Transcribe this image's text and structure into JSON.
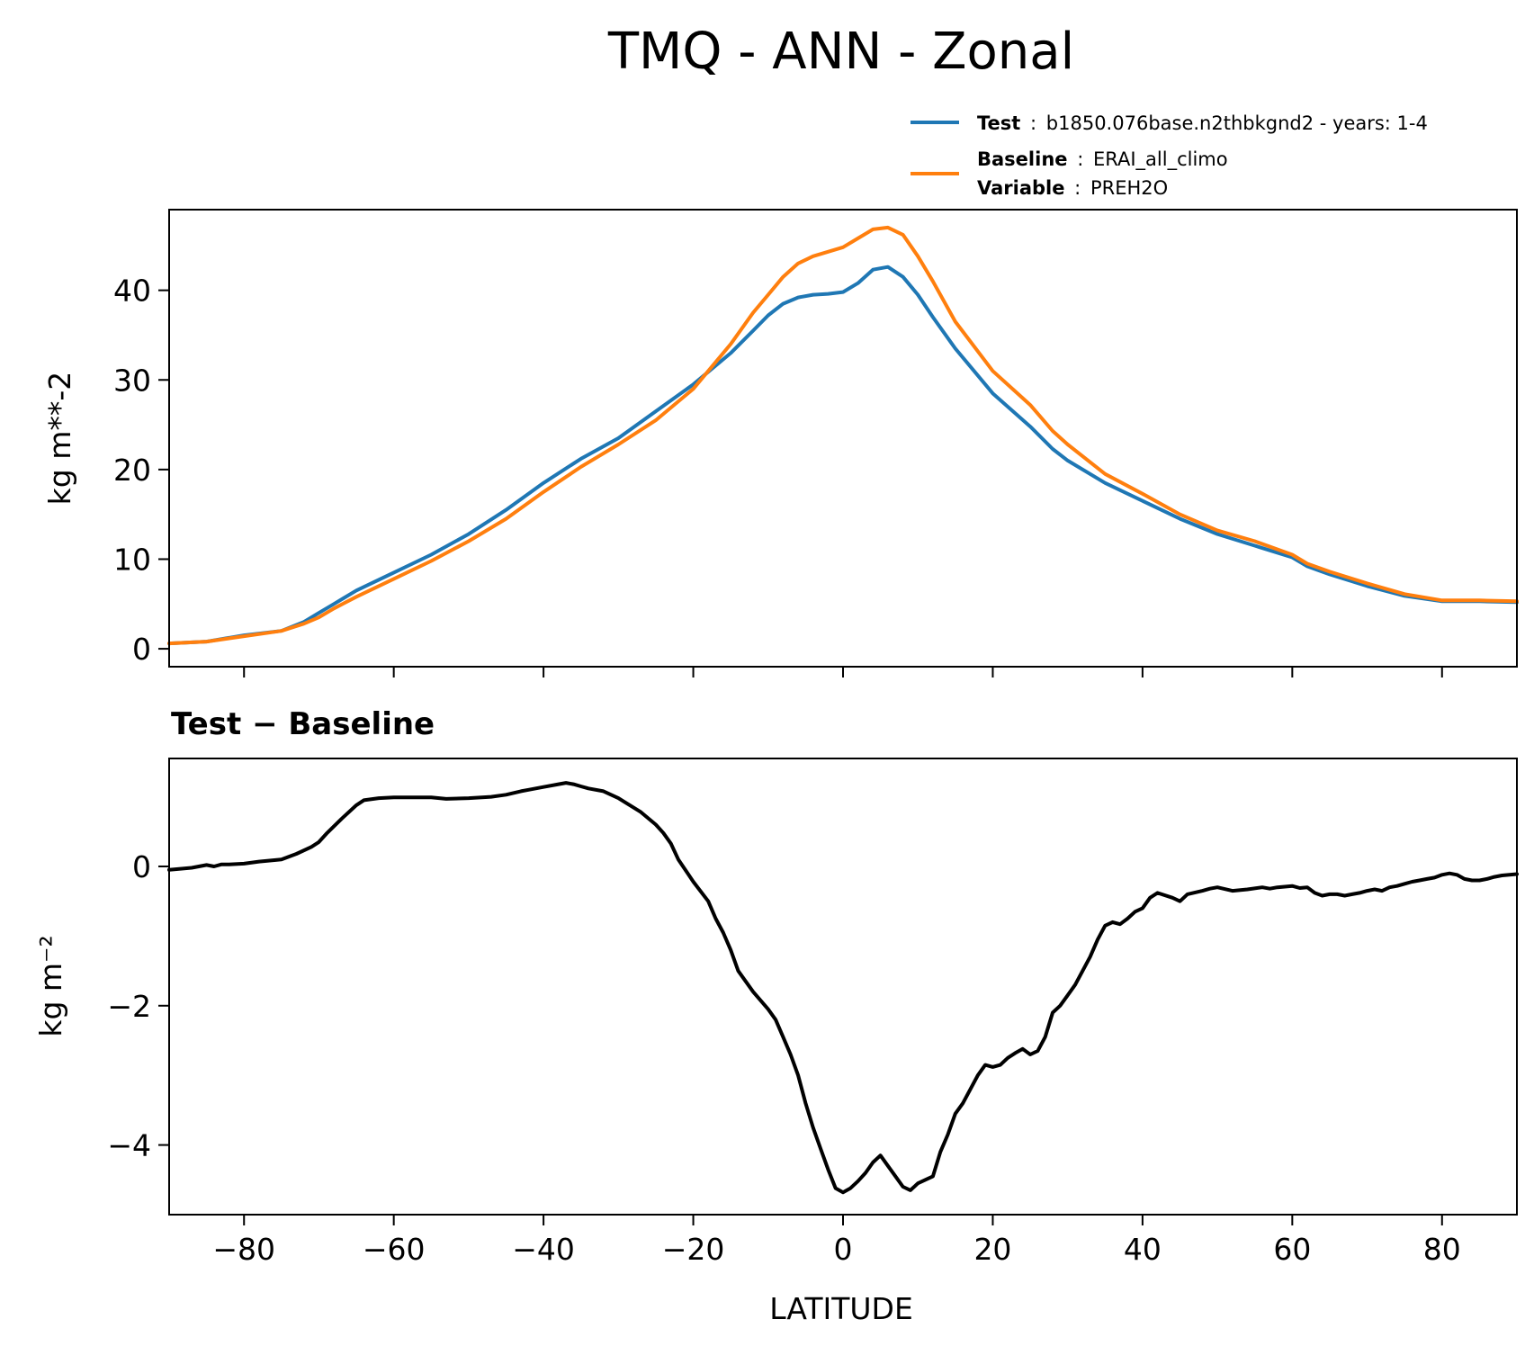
{
  "chart_data": [
    {
      "type": "line",
      "title": "TMQ - ANN - Zonal",
      "xlabel": "",
      "ylabel": "kg m**-2",
      "xlim": [
        -90,
        90
      ],
      "ylim": [
        -2,
        49
      ],
      "x_ticks": [
        -80,
        -60,
        -40,
        -20,
        0,
        20,
        40,
        60,
        80
      ],
      "y_ticks": [
        0,
        10,
        20,
        30,
        40
      ],
      "y_tick_labels": [
        "0",
        "10",
        "20",
        "30",
        "40"
      ],
      "legend": {
        "placement": "above-right",
        "entries": [
          {
            "series": "test",
            "lines": [
              {
                "key": "Test",
                "sep": ":",
                "value": "b1850.076base.n2thbkgnd2 - years: 1-4"
              }
            ]
          },
          {
            "series": "baseline",
            "lines": [
              {
                "key": "Baseline",
                "sep": ":",
                "value": "ERAI_all_climo"
              },
              {
                "key": "Variable",
                "sep": ":",
                "value": "PREH2O"
              }
            ]
          }
        ]
      },
      "series": [
        {
          "id": "test",
          "name": "Test",
          "color": "#1f77b4",
          "x": [
            -90,
            -85,
            -80,
            -75,
            -72,
            -70,
            -68,
            -65,
            -60,
            -55,
            -50,
            -45,
            -40,
            -35,
            -30,
            -25,
            -20,
            -15,
            -12,
            -10,
            -8,
            -6,
            -4,
            -2,
            0,
            2,
            4,
            6,
            8,
            10,
            12,
            15,
            20,
            25,
            28,
            30,
            35,
            40,
            45,
            50,
            55,
            60,
            62,
            65,
            70,
            75,
            80,
            85,
            90
          ],
          "y": [
            0.6,
            0.8,
            1.5,
            2.0,
            3.0,
            4.0,
            5.0,
            6.5,
            8.5,
            10.5,
            12.8,
            15.5,
            18.5,
            21.2,
            23.5,
            26.5,
            29.5,
            33.0,
            35.5,
            37.2,
            38.5,
            39.2,
            39.5,
            39.6,
            39.8,
            40.8,
            42.3,
            42.6,
            41.5,
            39.5,
            37.0,
            33.5,
            28.5,
            24.8,
            22.3,
            21.0,
            18.5,
            16.5,
            14.5,
            12.8,
            11.5,
            10.2,
            9.2,
            8.3,
            7.0,
            5.9,
            5.3,
            5.3,
            5.2
          ]
        },
        {
          "id": "baseline",
          "name": "Baseline",
          "color": "#ff7f0e",
          "x": [
            -90,
            -85,
            -80,
            -75,
            -72,
            -70,
            -68,
            -65,
            -60,
            -55,
            -50,
            -45,
            -40,
            -35,
            -30,
            -25,
            -20,
            -15,
            -12,
            -10,
            -8,
            -6,
            -4,
            -2,
            0,
            2,
            4,
            6,
            8,
            10,
            12,
            15,
            20,
            25,
            28,
            30,
            35,
            40,
            45,
            50,
            55,
            60,
            62,
            65,
            70,
            75,
            80,
            85,
            90
          ],
          "y": [
            0.6,
            0.8,
            1.4,
            2.0,
            2.8,
            3.5,
            4.5,
            5.8,
            7.8,
            9.8,
            12.0,
            14.5,
            17.5,
            20.3,
            22.8,
            25.5,
            29.0,
            34.0,
            37.5,
            39.5,
            41.5,
            43.0,
            43.8,
            44.3,
            44.8,
            45.8,
            46.8,
            47.0,
            46.2,
            43.8,
            41.0,
            36.5,
            31.0,
            27.2,
            24.3,
            22.8,
            19.5,
            17.3,
            15.0,
            13.2,
            12.0,
            10.5,
            9.5,
            8.6,
            7.3,
            6.1,
            5.4,
            5.4,
            5.3
          ]
        }
      ]
    },
    {
      "type": "line",
      "title": "Test − Baseline",
      "xlabel": "LATITUDE",
      "ylabel": "kg m⁻²",
      "xlim": [
        -90,
        90
      ],
      "ylim": [
        -5,
        1.55
      ],
      "x_ticks": [
        -80,
        -60,
        -40,
        -20,
        0,
        20,
        40,
        60,
        80
      ],
      "x_tick_labels": [
        "−80",
        "−60",
        "−40",
        "−20",
        "0",
        "20",
        "40",
        "60",
        "80"
      ],
      "y_ticks": [
        0,
        -2,
        -4
      ],
      "y_tick_labels": [
        "0",
        "−2",
        "−4"
      ],
      "series": [
        {
          "id": "difference",
          "name": "Test − Baseline",
          "color": "#000000",
          "x": [
            -90,
            -87,
            -85,
            -84,
            -83,
            -82,
            -80,
            -78,
            -75,
            -73,
            -71,
            -70,
            -69,
            -67,
            -65,
            -64,
            -62,
            -60,
            -55,
            -53,
            -50,
            -47,
            -45,
            -43,
            -42,
            -40,
            -38,
            -37,
            -36,
            -35,
            -34,
            -32,
            -30,
            -27,
            -25,
            -24,
            -23,
            -22,
            -20,
            -18,
            -17,
            -16,
            -15,
            -14,
            -12,
            -10,
            -9,
            -8,
            -7,
            -6,
            -5,
            -4,
            -3,
            -2,
            -1,
            0,
            1,
            2,
            3,
            4,
            5,
            6,
            7,
            8,
            9,
            10,
            11,
            12,
            13,
            14,
            15,
            16,
            17,
            18,
            19,
            20,
            21,
            22,
            23,
            24,
            25,
            26,
            27,
            28,
            29,
            30,
            31,
            32,
            33,
            34,
            35,
            36,
            37,
            38,
            39,
            40,
            41,
            42,
            44,
            45,
            46,
            48,
            49,
            50,
            52,
            54,
            56,
            57,
            58,
            60,
            61,
            62,
            63,
            64,
            65,
            66,
            67,
            68,
            69,
            70,
            71,
            72,
            73,
            74,
            75,
            76,
            77,
            78,
            79,
            80,
            81,
            82,
            83,
            84,
            85,
            86,
            87,
            88,
            89,
            90
          ],
          "y": [
            -0.05,
            -0.02,
            0.02,
            0.0,
            0.03,
            0.03,
            0.04,
            0.07,
            0.1,
            0.18,
            0.28,
            0.35,
            0.47,
            0.68,
            0.88,
            0.95,
            0.98,
            0.99,
            0.99,
            0.97,
            0.98,
            1.0,
            1.03,
            1.08,
            1.1,
            1.14,
            1.18,
            1.2,
            1.18,
            1.15,
            1.12,
            1.08,
            0.98,
            0.78,
            0.6,
            0.48,
            0.33,
            0.1,
            -0.22,
            -0.5,
            -0.75,
            -0.95,
            -1.2,
            -1.5,
            -1.8,
            -2.05,
            -2.2,
            -2.45,
            -2.7,
            -3.0,
            -3.4,
            -3.75,
            -4.05,
            -4.35,
            -4.62,
            -4.68,
            -4.62,
            -4.52,
            -4.4,
            -4.25,
            -4.15,
            -4.3,
            -4.45,
            -4.6,
            -4.65,
            -4.55,
            -4.5,
            -4.45,
            -4.1,
            -3.85,
            -3.55,
            -3.4,
            -3.2,
            -3.0,
            -2.85,
            -2.88,
            -2.85,
            -2.75,
            -2.68,
            -2.62,
            -2.7,
            -2.65,
            -2.45,
            -2.1,
            -2.0,
            -1.85,
            -1.7,
            -1.5,
            -1.3,
            -1.05,
            -0.85,
            -0.8,
            -0.83,
            -0.75,
            -0.65,
            -0.6,
            -0.45,
            -0.38,
            -0.45,
            -0.5,
            -0.4,
            -0.35,
            -0.32,
            -0.3,
            -0.35,
            -0.33,
            -0.3,
            -0.32,
            -0.3,
            -0.28,
            -0.31,
            -0.3,
            -0.38,
            -0.42,
            -0.4,
            -0.4,
            -0.42,
            -0.4,
            -0.38,
            -0.35,
            -0.33,
            -0.35,
            -0.3,
            -0.28,
            -0.25,
            -0.22,
            -0.2,
            -0.18,
            -0.16,
            -0.12,
            -0.1,
            -0.12,
            -0.18,
            -0.2,
            -0.2,
            -0.18,
            -0.15,
            -0.13,
            -0.12,
            -0.11
          ]
        }
      ]
    }
  ]
}
